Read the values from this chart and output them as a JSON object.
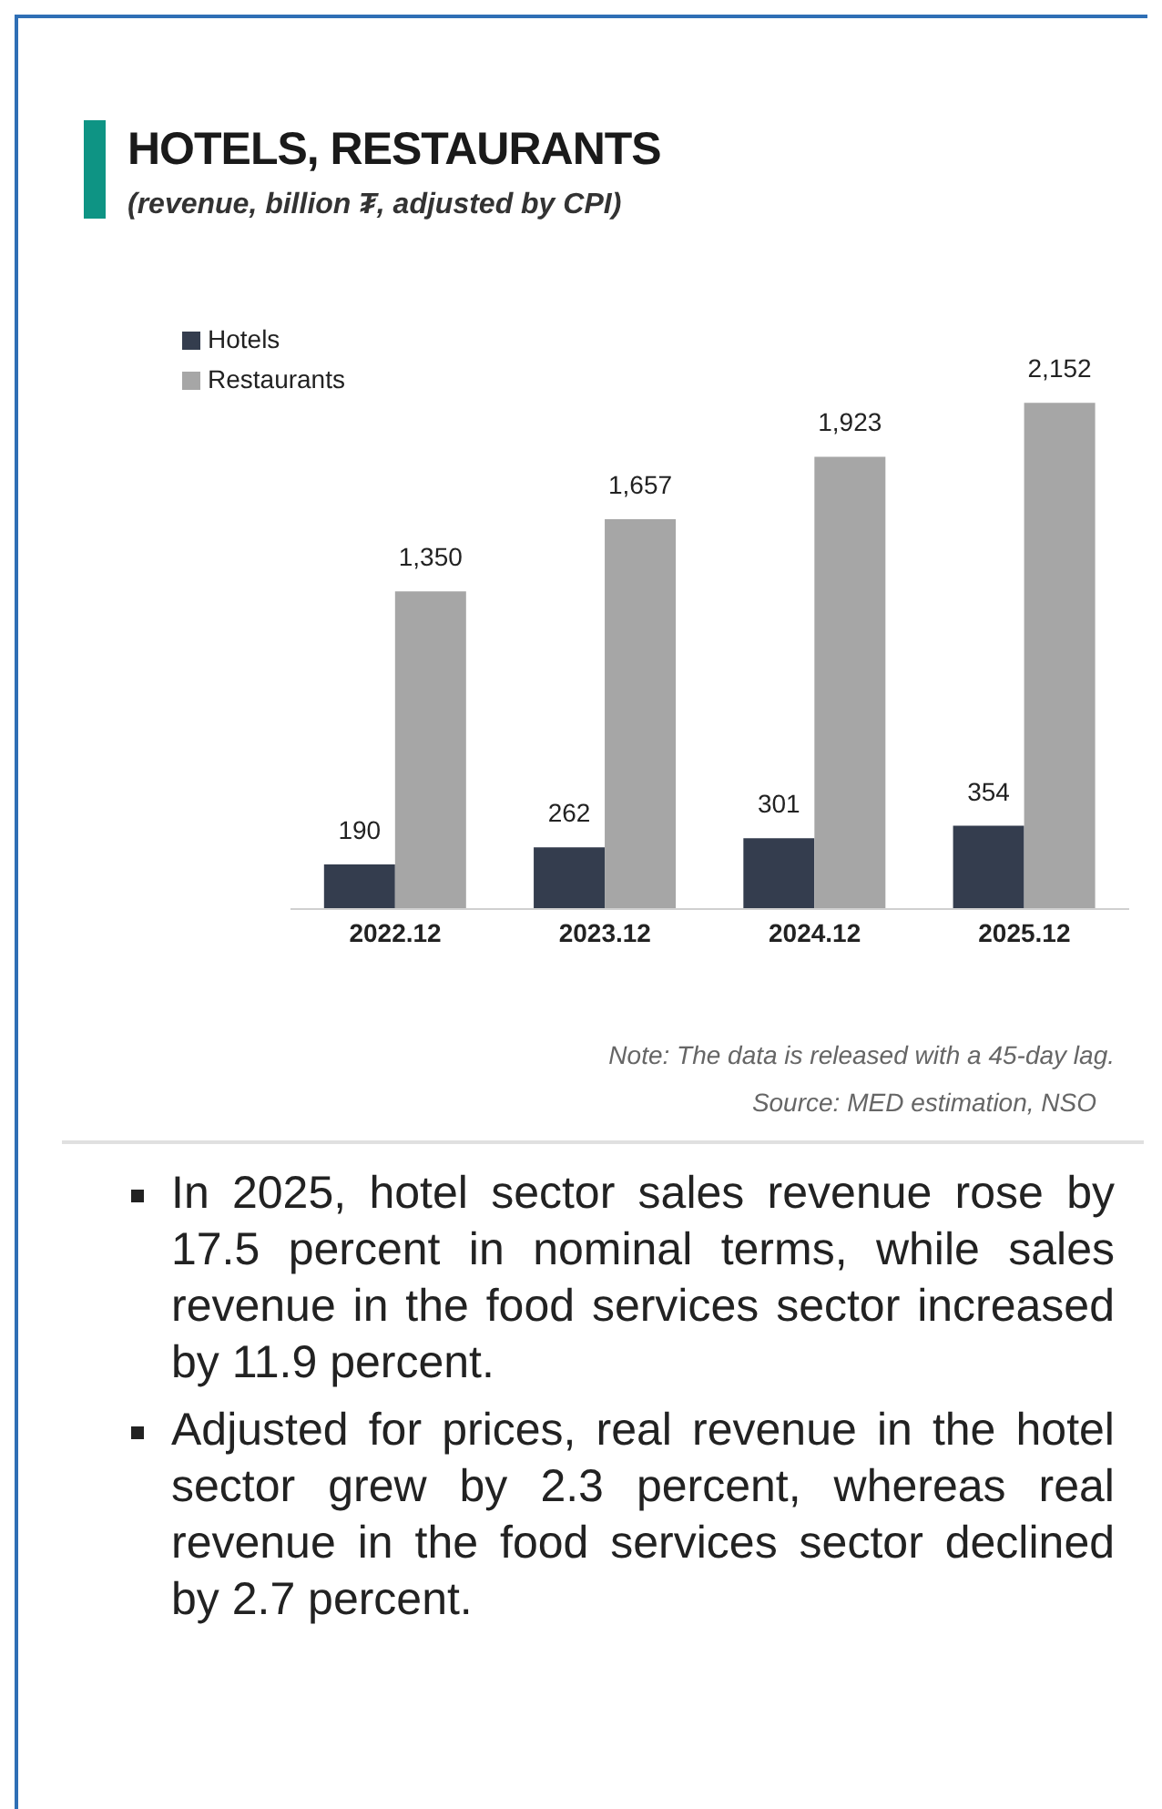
{
  "chart_data": {
    "type": "bar",
    "title": "HOTELS, RESTAURANTS",
    "subtitle": "(revenue, billion ₮, adjusted by CPI)",
    "categories": [
      "2022.12",
      "2023.12",
      "2024.12",
      "2025.12"
    ],
    "series": [
      {
        "name": "Hotels",
        "color": "#343d4e",
        "values": [
          190,
          262,
          301,
          354
        ],
        "value_labels": [
          "190",
          "262",
          "301",
          "354"
        ]
      },
      {
        "name": "Restaurants",
        "color": "#a6a6a6",
        "values": [
          1350,
          1657,
          1923,
          2152
        ],
        "value_labels": [
          "1,350",
          "1,657",
          "1,923",
          "2,152"
        ]
      }
    ],
    "legend": "top left",
    "grid": false,
    "annotations": [
      "Note: The data is released with a 45-day lag.",
      "Source: MED estimation, NSO",
      "In 2025, hotel sector sales revenue rose by 17.5 percent in nominal terms, while sales revenue in the food services sector increased by 11.9 percent.",
      "Adjusted for prices, real revenue in the hotel sector grew by 2.3 percent, whereas real revenue in the food services sector declined by 2.7 percent."
    ]
  }
}
